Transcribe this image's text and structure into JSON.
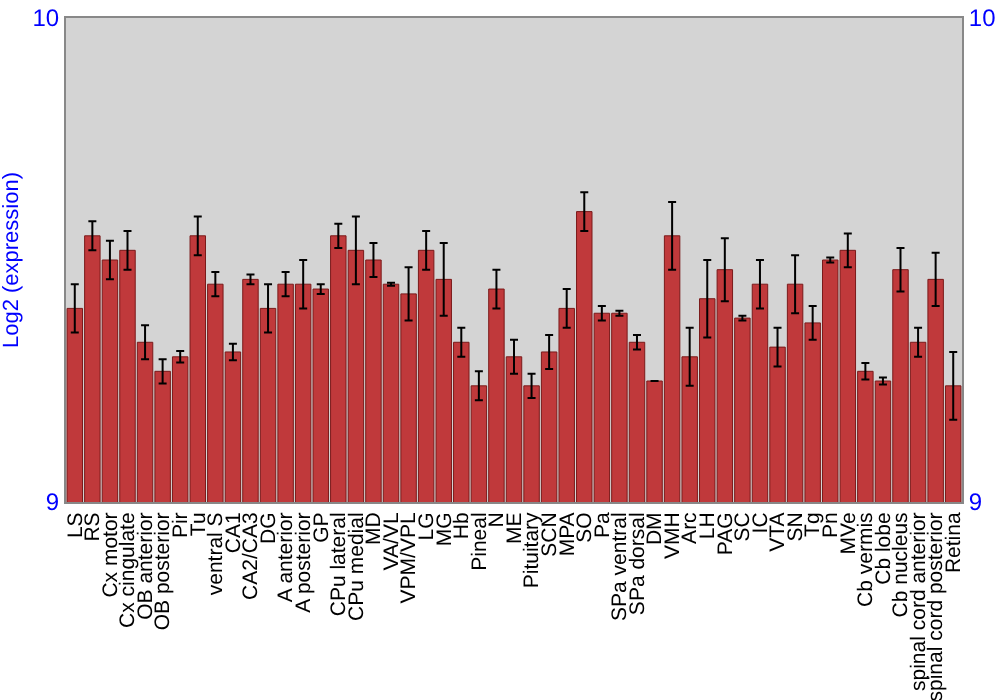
{
  "chart_data": {
    "type": "bar",
    "ylabel": "Log2 (expression)",
    "categories": [
      "LS",
      "RS",
      "Cx motor",
      "Cx cingulate",
      "OB anterior",
      "OB posterior",
      "Pir",
      "Tu",
      "ventral S",
      "CA1",
      "CA2/CA3",
      "DG",
      "A anterior",
      "A posterior",
      "GP",
      "CPu lateral",
      "CPu medial",
      "MD",
      "VA/VL",
      "VPM/VPL",
      "LG",
      "MG",
      "Hb",
      "Pineal",
      "N",
      "ME",
      "Pituitary",
      "SCN",
      "MPA",
      "SO",
      "Pa",
      "SPa ventral",
      "SPa dorsal",
      "DM",
      "VMH",
      "Arc",
      "LH",
      "PAG",
      "SC",
      "IC",
      "VTA",
      "SN",
      "Tg",
      "Pn",
      "MVe",
      "Cb vermis",
      "Cb lobe",
      "Cb nucleus",
      "spinal cord anterior",
      "spinal cord posterior",
      "Retina"
    ],
    "series": [
      {
        "color": "#c0393b",
        "values": [
          9.4,
          9.55,
          9.5,
          9.52,
          9.33,
          9.27,
          9.3,
          9.55,
          9.45,
          9.31,
          9.46,
          9.4,
          9.45,
          9.45,
          9.44,
          9.55,
          9.52,
          9.5,
          9.45,
          9.43,
          9.52,
          9.46,
          9.33,
          9.24,
          9.44,
          9.3,
          9.24,
          9.31,
          9.4,
          9.6,
          9.39,
          9.39,
          9.33,
          9.25,
          9.55,
          9.3,
          9.42,
          9.48,
          9.38,
          9.45,
          9.32,
          9.45,
          9.37,
          9.5,
          9.52,
          9.27,
          9.25,
          9.48,
          9.33,
          9.46,
          9.24
        ],
        "errors": [
          0.05,
          0.03,
          0.04,
          0.04,
          0.035,
          0.025,
          0.012,
          0.04,
          0.025,
          0.017,
          0.01,
          0.05,
          0.025,
          0.05,
          0.01,
          0.025,
          0.07,
          0.035,
          0.003,
          0.055,
          0.04,
          0.075,
          0.03,
          0.03,
          0.04,
          0.035,
          0.025,
          0.035,
          0.04,
          0.04,
          0.015,
          0.005,
          0.015,
          null,
          0.07,
          0.06,
          0.08,
          0.065,
          0.005,
          0.05,
          0.04,
          0.06,
          0.035,
          0.005,
          0.035,
          0.017,
          0.007,
          0.045,
          0.03,
          0.055,
          0.07
        ]
      }
    ],
    "ylim": [
      9,
      10
    ],
    "yticks": [
      9,
      10
    ],
    "y2lim": [
      9,
      10
    ],
    "y2ticks": [
      9,
      10
    ],
    "grid": false
  }
}
